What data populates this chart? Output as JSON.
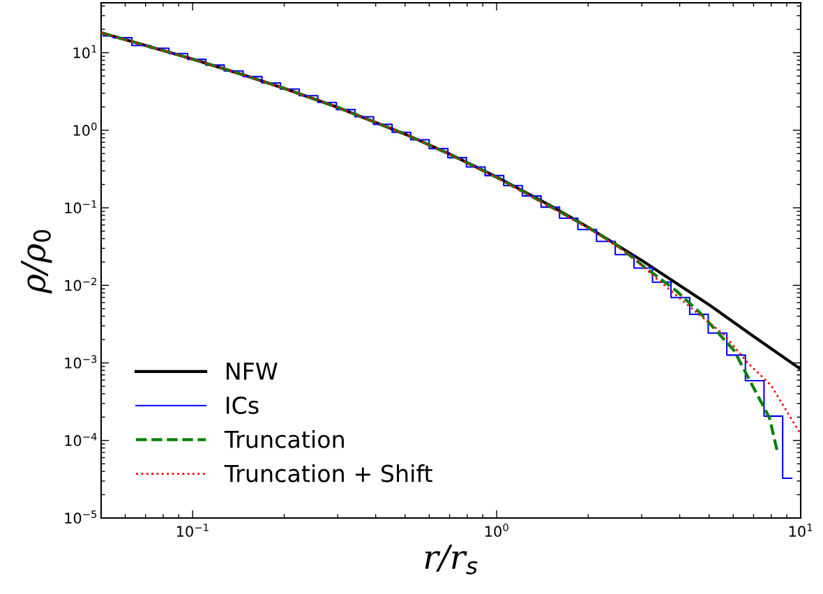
{
  "chart_data": {
    "type": "line",
    "xlabel": "r/r$_{s}$",
    "ylabel": "ρ/ρ$_{0}$",
    "log": "xy",
    "xlim": [
      0.05,
      10
    ],
    "ylim": [
      1e-05,
      44
    ],
    "xticks": [
      {
        "value": 0.1,
        "label": "10$^{−1}$"
      },
      {
        "value": 1,
        "label": "10$^{0}$"
      },
      {
        "value": 10,
        "label": "10$^{1}$"
      }
    ],
    "yticks": [
      {
        "value": 1e-05,
        "label": "10$^{−5}$"
      },
      {
        "value": 0.0001,
        "label": "10$^{−4}$"
      },
      {
        "value": 0.001,
        "label": "10$^{−3}$"
      },
      {
        "value": 0.01,
        "label": "10$^{−2}$"
      },
      {
        "value": 0.1,
        "label": "10$^{−1}$"
      },
      {
        "value": 1,
        "label": "10$^{0}$"
      },
      {
        "value": 10,
        "label": "10$^{1}$"
      }
    ],
    "legend": "bottom left",
    "grid": false,
    "series": [
      {
        "name": "NFW",
        "color": "#000000",
        "line_style": "solid",
        "x": [
          0.05,
          0.07,
          0.1,
          0.15,
          0.2,
          0.3,
          0.5,
          0.7,
          1,
          1.5,
          2,
          3,
          5,
          7,
          10
        ],
        "values": [
          18.1,
          12.4,
          8.26,
          5.04,
          3.47,
          1.97,
          0.89,
          0.494,
          0.25,
          0.107,
          0.056,
          0.021,
          0.0056,
          0.0022,
          0.00083
        ]
      },
      {
        "name": "ICs",
        "color": "#0000ff",
        "type": "step",
        "line_style": "solid",
        "x": [
          0.0508,
          0.0587,
          0.0675,
          0.0776,
          0.0895,
          0.103,
          0.118,
          0.136,
          0.157,
          0.181,
          0.208,
          0.24,
          0.276,
          0.318,
          0.366,
          0.421,
          0.485,
          0.558,
          0.642,
          0.74,
          0.851,
          0.981,
          1.129,
          1.3,
          1.5,
          1.72,
          1.98,
          2.28,
          2.63,
          3.03,
          3.48,
          4.01,
          4.62,
          5.31,
          6.12,
          7.04,
          8.11,
          9.34
        ],
        "values": [
          16.5,
          15.6,
          12.4,
          11.4,
          9.75,
          8.2,
          6.92,
          5.82,
          4.92,
          4.07,
          3.4,
          2.79,
          2.28,
          1.85,
          1.49,
          1.19,
          0.94,
          0.753,
          0.58,
          0.443,
          0.336,
          0.26,
          0.193,
          0.142,
          0.102,
          0.0735,
          0.0525,
          0.0369,
          0.0249,
          0.0167,
          0.011,
          0.00696,
          0.00423,
          0.00242,
          0.00126,
          0.00059,
          0.000206,
          3.25e-05
        ]
      },
      {
        "name": "Truncation",
        "color": "#008000",
        "line_style": "dashed",
        "x": [
          0.05,
          0.07,
          0.1,
          0.15,
          0.2,
          0.3,
          0.5,
          0.7,
          1,
          1.5,
          1.95,
          2.46,
          3.04,
          3.9,
          4.7,
          6.04,
          7.9,
          8.4
        ],
        "values": [
          18.1,
          12.4,
          8.26,
          5.04,
          3.47,
          1.97,
          0.89,
          0.49,
          0.247,
          0.104,
          0.059,
          0.034,
          0.0176,
          0.0085,
          0.0043,
          0.00144,
          0.000194,
          6.9e-05
        ]
      },
      {
        "name": "Truncation + Shift",
        "color": "#ff0000",
        "line_style": "dotted",
        "x": [
          0.05,
          0.07,
          0.1,
          0.15,
          0.2,
          0.3,
          0.5,
          0.7,
          1,
          1.5,
          2.0,
          2.78,
          3.3,
          4.54,
          5.6,
          6.7,
          8.0,
          10
        ],
        "values": [
          18.1,
          12.4,
          8.26,
          5.04,
          3.47,
          1.97,
          0.89,
          0.49,
          0.245,
          0.102,
          0.055,
          0.024,
          0.0129,
          0.0045,
          0.0023,
          0.001,
          0.00051,
          0.00012
        ]
      }
    ]
  }
}
